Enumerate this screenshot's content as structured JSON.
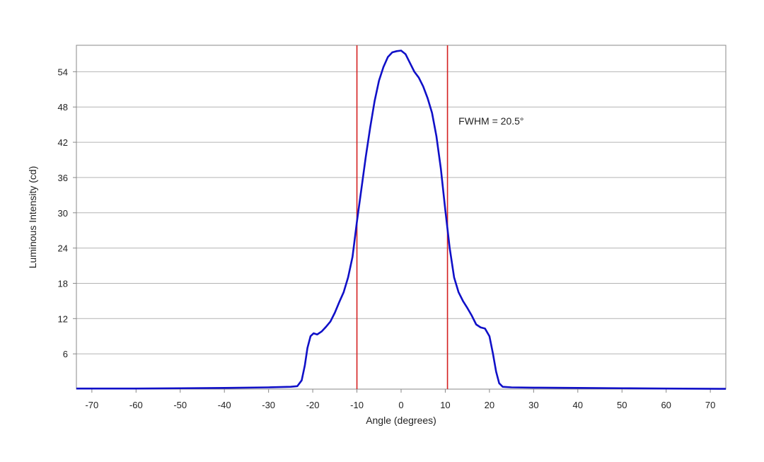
{
  "chart_data": {
    "type": "line",
    "title": "",
    "xlabel": "Angle (degrees)",
    "ylabel": "Luminous Intensity (cd)",
    "xlim": [
      -73.5,
      73.5
    ],
    "ylim": [
      0,
      58.5
    ],
    "x_ticks": [
      -70,
      -60,
      -50,
      -40,
      -30,
      -20,
      -10,
      0,
      10,
      20,
      30,
      40,
      50,
      60,
      70
    ],
    "y_ticks": [
      6,
      12,
      18,
      24,
      30,
      36,
      42,
      48,
      54
    ],
    "grid": {
      "horizontal": true,
      "vertical": false
    },
    "colors": {
      "series": "#1010c8",
      "marker_lines": "#d42020",
      "grid": "#b4b4b4",
      "frame": "#888888"
    },
    "series": [
      {
        "points": [
          [
            -73.5,
            0.1
          ],
          [
            -60,
            0.1
          ],
          [
            -50,
            0.15
          ],
          [
            -40,
            0.2
          ],
          [
            -30,
            0.3
          ],
          [
            -25,
            0.4
          ],
          [
            -23.5,
            0.5
          ],
          [
            -22.5,
            1.5
          ],
          [
            -21.8,
            4
          ],
          [
            -21.2,
            7
          ],
          [
            -20.5,
            9
          ],
          [
            -19.8,
            9.5
          ],
          [
            -19,
            9.3
          ],
          [
            -18,
            9.8
          ],
          [
            -17,
            10.6
          ],
          [
            -16,
            11.5
          ],
          [
            -15,
            13
          ],
          [
            -14,
            14.8
          ],
          [
            -13,
            16.5
          ],
          [
            -12,
            19
          ],
          [
            -11,
            22.5
          ],
          [
            -10,
            28.5
          ],
          [
            -9,
            34
          ],
          [
            -8,
            39.5
          ],
          [
            -7,
            44.5
          ],
          [
            -6,
            49
          ],
          [
            -5,
            52.5
          ],
          [
            -4,
            54.8
          ],
          [
            -3,
            56.5
          ],
          [
            -2,
            57.3
          ],
          [
            -1,
            57.5
          ],
          [
            0,
            57.6
          ],
          [
            1,
            57
          ],
          [
            2,
            55.5
          ],
          [
            3,
            54
          ],
          [
            4,
            53
          ],
          [
            5,
            51.5
          ],
          [
            6,
            49.5
          ],
          [
            7,
            47
          ],
          [
            8,
            43
          ],
          [
            9,
            37.5
          ],
          [
            10,
            30.5
          ],
          [
            11,
            24
          ],
          [
            12,
            19
          ],
          [
            13,
            16.5
          ],
          [
            14,
            15
          ],
          [
            15,
            13.8
          ],
          [
            16,
            12.5
          ],
          [
            17,
            11
          ],
          [
            18,
            10.5
          ],
          [
            19,
            10.3
          ],
          [
            20,
            9
          ],
          [
            20.8,
            6
          ],
          [
            21.5,
            3
          ],
          [
            22.2,
            1
          ],
          [
            23,
            0.4
          ],
          [
            25,
            0.3
          ],
          [
            30,
            0.25
          ],
          [
            40,
            0.2
          ],
          [
            50,
            0.15
          ],
          [
            60,
            0.1
          ],
          [
            73.5,
            0.05
          ]
        ]
      }
    ],
    "vertical_lines": [
      -10,
      10.5
    ],
    "annotations": [
      {
        "text": "FWHM = 20.5°",
        "x": 13,
        "y": 45
      }
    ]
  }
}
